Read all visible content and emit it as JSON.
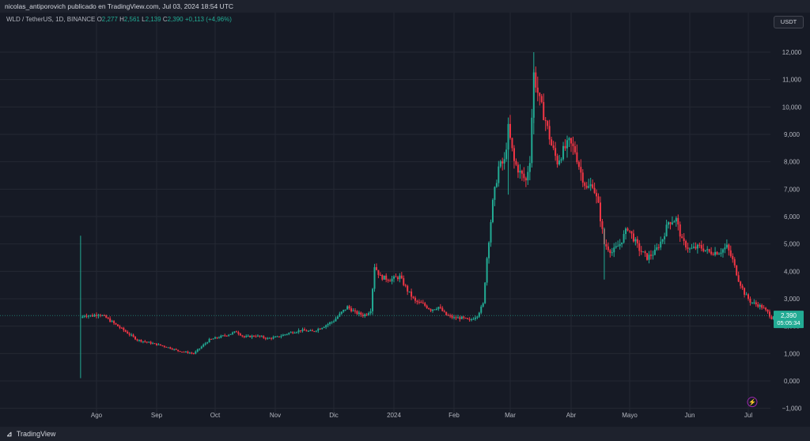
{
  "header": {
    "publish_line": "nicolas_antiporovich publicado en TradingView.com, Jul 03, 2024 18:54 UTC"
  },
  "legend": {
    "symbol": "WLD / TetherUS, 1D, BINANCE",
    "o_label": "O",
    "o_value": "2,277",
    "h_label": "H",
    "h_value": "2,561",
    "l_label": "L",
    "l_value": "2,139",
    "c_label": "C",
    "c_value": "2,390",
    "change": "+0,113 (+4,96%)"
  },
  "unit_button": "USDT",
  "last_price": {
    "value": "2,390",
    "countdown": "05:05:34"
  },
  "footer": {
    "brand": "TradingView",
    "logo_icon": "tradingview-logo-icon"
  },
  "lightning_icon": "lightning-icon",
  "colors": {
    "up": "#22ab94",
    "down": "#f23645",
    "background": "#161a25",
    "grid": "#242833"
  },
  "chart_data": {
    "type": "candlestick",
    "title": "",
    "xlabel": "",
    "ylabel": "",
    "ylim": [
      -1000,
      12000
    ],
    "grid": true,
    "x_ticks": [
      "Ago",
      "Sep",
      "Oct",
      "Nov",
      "Dic",
      "2024",
      "Feb",
      "Mar",
      "Abr",
      "Mayo",
      "Jun",
      "Jul"
    ],
    "y_ticks": [
      "12,000",
      "11,000",
      "10,000",
      "9,000",
      "8,000",
      "7,000",
      "6,000",
      "5,000",
      "4,000",
      "3,000",
      "2,000",
      "1,000",
      "0,000",
      "−1,000"
    ],
    "y_tick_values": [
      12000,
      11000,
      10000,
      9000,
      8000,
      7000,
      6000,
      5000,
      4000,
      3000,
      2000,
      1000,
      0,
      -1000
    ],
    "x_tick_dates": [
      "2023-08-01",
      "2023-09-01",
      "2023-10-01",
      "2023-11-01",
      "2023-12-01",
      "2024-01-01",
      "2024-02-01",
      "2024-03-01",
      "2024-04-01",
      "2024-05-01",
      "2024-06-01",
      "2024-07-01"
    ],
    "close_points": [
      [
        "2023-07-24",
        2300
      ],
      [
        "2023-07-26",
        2400
      ],
      [
        "2023-07-30",
        2380
      ],
      [
        "2023-08-02",
        2450
      ],
      [
        "2023-08-06",
        2300
      ],
      [
        "2023-08-10",
        2100
      ],
      [
        "2023-08-14",
        1900
      ],
      [
        "2023-08-18",
        1700
      ],
      [
        "2023-08-22",
        1500
      ],
      [
        "2023-08-28",
        1400
      ],
      [
        "2023-09-03",
        1300
      ],
      [
        "2023-09-08",
        1200
      ],
      [
        "2023-09-12",
        1100
      ],
      [
        "2023-09-16",
        1050
      ],
      [
        "2023-09-20",
        1000
      ],
      [
        "2023-09-24",
        1250
      ],
      [
        "2023-09-28",
        1500
      ],
      [
        "2023-10-03",
        1600
      ],
      [
        "2023-10-08",
        1700
      ],
      [
        "2023-10-12",
        1800
      ],
      [
        "2023-10-16",
        1600
      ],
      [
        "2023-10-22",
        1650
      ],
      [
        "2023-10-28",
        1550
      ],
      [
        "2023-11-02",
        1600
      ],
      [
        "2023-11-08",
        1750
      ],
      [
        "2023-11-14",
        1850
      ],
      [
        "2023-11-20",
        1800
      ],
      [
        "2023-11-26",
        2000
      ],
      [
        "2023-12-01",
        2200
      ],
      [
        "2023-12-05",
        2500
      ],
      [
        "2023-12-08",
        2700
      ],
      [
        "2023-12-12",
        2500
      ],
      [
        "2023-12-16",
        2400
      ],
      [
        "2023-12-18",
        2450
      ],
      [
        "2023-12-20",
        2600
      ],
      [
        "2023-12-22",
        4200
      ],
      [
        "2023-12-25",
        3800
      ],
      [
        "2023-12-30",
        3700
      ],
      [
        "2024-01-04",
        3800
      ],
      [
        "2024-01-08",
        3300
      ],
      [
        "2024-01-12",
        2900
      ],
      [
        "2024-01-16",
        2800
      ],
      [
        "2024-01-20",
        2600
      ],
      [
        "2024-01-24",
        2700
      ],
      [
        "2024-01-28",
        2400
      ],
      [
        "2024-02-01",
        2300
      ],
      [
        "2024-02-05",
        2300
      ],
      [
        "2024-02-09",
        2200
      ],
      [
        "2024-02-13",
        2400
      ],
      [
        "2024-02-16",
        2800
      ],
      [
        "2024-02-18",
        4500
      ],
      [
        "2024-02-21",
        6500
      ],
      [
        "2024-02-24",
        7800
      ],
      [
        "2024-02-27",
        8000
      ],
      [
        "2024-02-29",
        9200
      ],
      [
        "2024-03-03",
        8000
      ],
      [
        "2024-03-06",
        7600
      ],
      [
        "2024-03-09",
        7300
      ],
      [
        "2024-03-11",
        8100
      ],
      [
        "2024-03-13",
        11200
      ],
      [
        "2024-03-16",
        10200
      ],
      [
        "2024-03-19",
        9500
      ],
      [
        "2024-03-22",
        8600
      ],
      [
        "2024-03-25",
        8000
      ],
      [
        "2024-03-28",
        8400
      ],
      [
        "2024-03-31",
        8700
      ],
      [
        "2024-04-03",
        8400
      ],
      [
        "2024-04-06",
        7600
      ],
      [
        "2024-04-09",
        7000
      ],
      [
        "2024-04-12",
        7200
      ],
      [
        "2024-04-15",
        6400
      ],
      [
        "2024-04-18",
        5000
      ],
      [
        "2024-04-22",
        4700
      ],
      [
        "2024-04-26",
        5000
      ],
      [
        "2024-04-30",
        5600
      ],
      [
        "2024-05-03",
        5200
      ],
      [
        "2024-05-06",
        4800
      ],
      [
        "2024-05-10",
        4500
      ],
      [
        "2024-05-14",
        4700
      ],
      [
        "2024-05-18",
        5200
      ],
      [
        "2024-05-21",
        5800
      ],
      [
        "2024-05-25",
        5900
      ],
      [
        "2024-05-28",
        5100
      ],
      [
        "2024-06-01",
        4800
      ],
      [
        "2024-06-06",
        4900
      ],
      [
        "2024-06-11",
        4700
      ],
      [
        "2024-06-16",
        4700
      ],
      [
        "2024-06-20",
        4900
      ],
      [
        "2024-06-23",
        4400
      ],
      [
        "2024-06-26",
        3700
      ],
      [
        "2024-06-29",
        3200
      ],
      [
        "2024-07-02",
        2900
      ],
      [
        "2024-07-05",
        2800
      ],
      [
        "2024-07-08",
        2700
      ],
      [
        "2024-07-11",
        2500
      ],
      [
        "2024-07-13",
        2300
      ],
      [
        "2024-07-14",
        2390
      ]
    ],
    "spikes": [
      {
        "date": "2023-07-24",
        "high": 5300,
        "low": 100
      },
      {
        "date": "2024-03-13",
        "high": 12000,
        "low": 9000
      },
      {
        "date": "2024-02-29",
        "high": 9400,
        "low": 6800
      },
      {
        "date": "2024-04-18",
        "high": 5600,
        "low": 3700
      }
    ]
  }
}
